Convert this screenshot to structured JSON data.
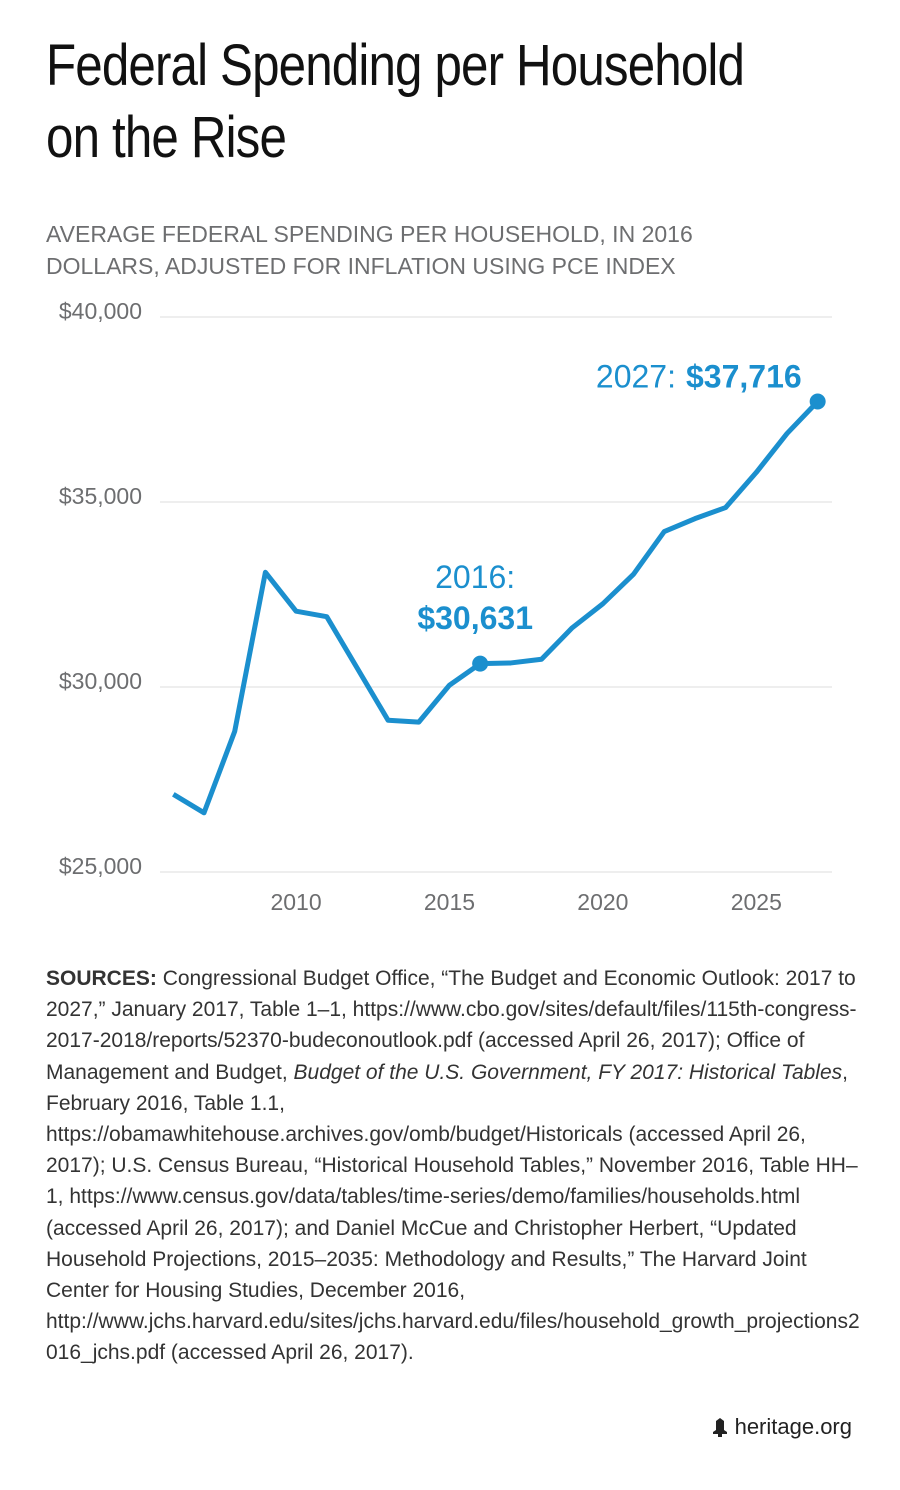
{
  "chart_data": {
    "type": "line",
    "title": "Federal Spending per Household on the Rise",
    "subtitle": "AVERAGE FEDERAL SPENDING PER HOUSEHOLD, IN 2016 DOLLARS, ADJUSTED FOR INFLATION USING PCE INDEX",
    "x": [
      2006,
      2007,
      2008,
      2009,
      2010,
      2011,
      2012,
      2013,
      2014,
      2015,
      2016,
      2017,
      2018,
      2019,
      2020,
      2021,
      2022,
      2023,
      2024,
      2025,
      2026,
      2027
    ],
    "values": [
      27100,
      26600,
      28800,
      33100,
      32050,
      31900,
      30500,
      29100,
      29050,
      30050,
      30631,
      30650,
      30750,
      31600,
      32250,
      33050,
      34200,
      34550,
      34850,
      35800,
      36850,
      37716
    ],
    "value_labels": [
      null,
      null,
      null,
      null,
      null,
      null,
      null,
      null,
      null,
      null,
      "$30,631",
      null,
      null,
      null,
      null,
      null,
      null,
      null,
      null,
      null,
      null,
      "$37,716"
    ],
    "annotations": [
      {
        "index": 10,
        "text": "2016:"
      },
      {
        "index": 21,
        "text": "2027:"
      }
    ],
    "color": "#1b8fce",
    "xlim": [
      2005.5,
      2027.5
    ],
    "xticks": [
      2010,
      2015,
      2020,
      2025
    ],
    "ylim": [
      25000,
      40000
    ],
    "yticks": [
      {
        "value": 25000,
        "label": "$25,000"
      },
      {
        "value": 30000,
        "label": "$30,000"
      },
      {
        "value": 35000,
        "label": "$35,000"
      },
      {
        "value": 40000,
        "label": "$40,000"
      }
    ],
    "grid": true
  },
  "sources": {
    "label": "SOURCES:",
    "text_1": "Congressional Budget Office, “The Budget and Economic Outlook: 2017 to 2027,” January 2017, Table 1–1, https://www.cbo.gov/sites/default/files/115th-congress-2017-2018/reports/52370-budeconoutlook.pdf (accessed April 26, 2017); Office of Management and Budget,",
    "italic": "Budget of the U.S. Government, FY 2017: Historical Tables",
    "text_2": ", February 2016, Table 1.1, https://obamawhitehouse.archives.gov/omb/budget/Historicals (accessed April 26, 2017); U.S. Census Bureau, “Historical Household Tables,” November 2016, Table HH–1, https://www.census.gov/data/tables/time-series/demo/families/households.html (accessed April 26, 2017); and Daniel McCue and Christopher Herbert, “Updated Household Projections, 2015–2035: Methodology and Results,” The Harvard Joint Center for Housing Studies, December 2016, http://www.jchs.harvard.edu/sites/jchs.harvard.edu/files/household_growth_projections2016_jchs.pdf (accessed April 26, 2017)."
  },
  "footer": "heritage.org"
}
